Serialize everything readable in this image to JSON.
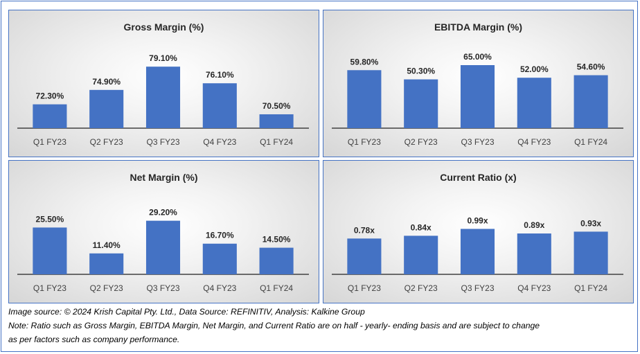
{
  "chart_data": [
    {
      "type": "bar",
      "title": "Gross Margin (%)",
      "categories": [
        "Q1 FY23",
        "Q2 FY23",
        "Q3 FY23",
        "Q4 FY23",
        "Q1 FY24"
      ],
      "values": [
        72.3,
        74.9,
        79.1,
        76.1,
        70.5
      ],
      "data_labels": [
        "72.30%",
        "74.90%",
        "79.10%",
        "76.10%",
        "70.50%"
      ],
      "ylim": [
        68,
        82
      ],
      "bar_color": "#4472c4",
      "grid": false
    },
    {
      "type": "bar",
      "title": "EBITDA Margin (%)",
      "categories": [
        "Q1 FY23",
        "Q2 FY23",
        "Q3 FY23",
        "Q4 FY23",
        "Q1 FY24"
      ],
      "values": [
        59.8,
        50.3,
        65.0,
        52.0,
        54.6
      ],
      "data_labels": [
        "59.80%",
        "50.30%",
        "65.00%",
        "52.00%",
        "54.60%"
      ],
      "ylim": [
        0,
        80
      ],
      "bar_color": "#4472c4",
      "grid": false
    },
    {
      "type": "bar",
      "title": "Net Margin (%)",
      "categories": [
        "Q1 FY23",
        "Q2 FY23",
        "Q3 FY23",
        "Q4 FY23",
        "Q1 FY24"
      ],
      "values": [
        25.5,
        11.4,
        29.2,
        16.7,
        14.5
      ],
      "data_labels": [
        "25.50%",
        "11.40%",
        "29.20%",
        "16.70%",
        "14.50%"
      ],
      "ylim": [
        0,
        40
      ],
      "bar_color": "#4472c4",
      "grid": false
    },
    {
      "type": "bar",
      "title": "Current Ratio (x)",
      "categories": [
        "Q1 FY23",
        "Q2 FY23",
        "Q3 FY23",
        "Q4 FY23",
        "Q1 FY24"
      ],
      "values": [
        0.78,
        0.84,
        0.99,
        0.89,
        0.93
      ],
      "data_labels": [
        "0.78x",
        "0.84x",
        "0.99x",
        "0.89x",
        "0.93x"
      ],
      "ylim": [
        0,
        1.6
      ],
      "bar_color": "#4472c4",
      "grid": false
    }
  ],
  "footer": {
    "source": "Image source: © 2024  Krish Capital Pty. Ltd., Data Source: REFINITIV, Analysis: Kalkine Group",
    "note_line1": "Note: Ratio such as Gross Margin, EBITDA Margin, Net Margin, and Current Ratio are on half - yearly- ending basis and are subject to change",
    "note_line2": "as per factors such as company performance."
  }
}
